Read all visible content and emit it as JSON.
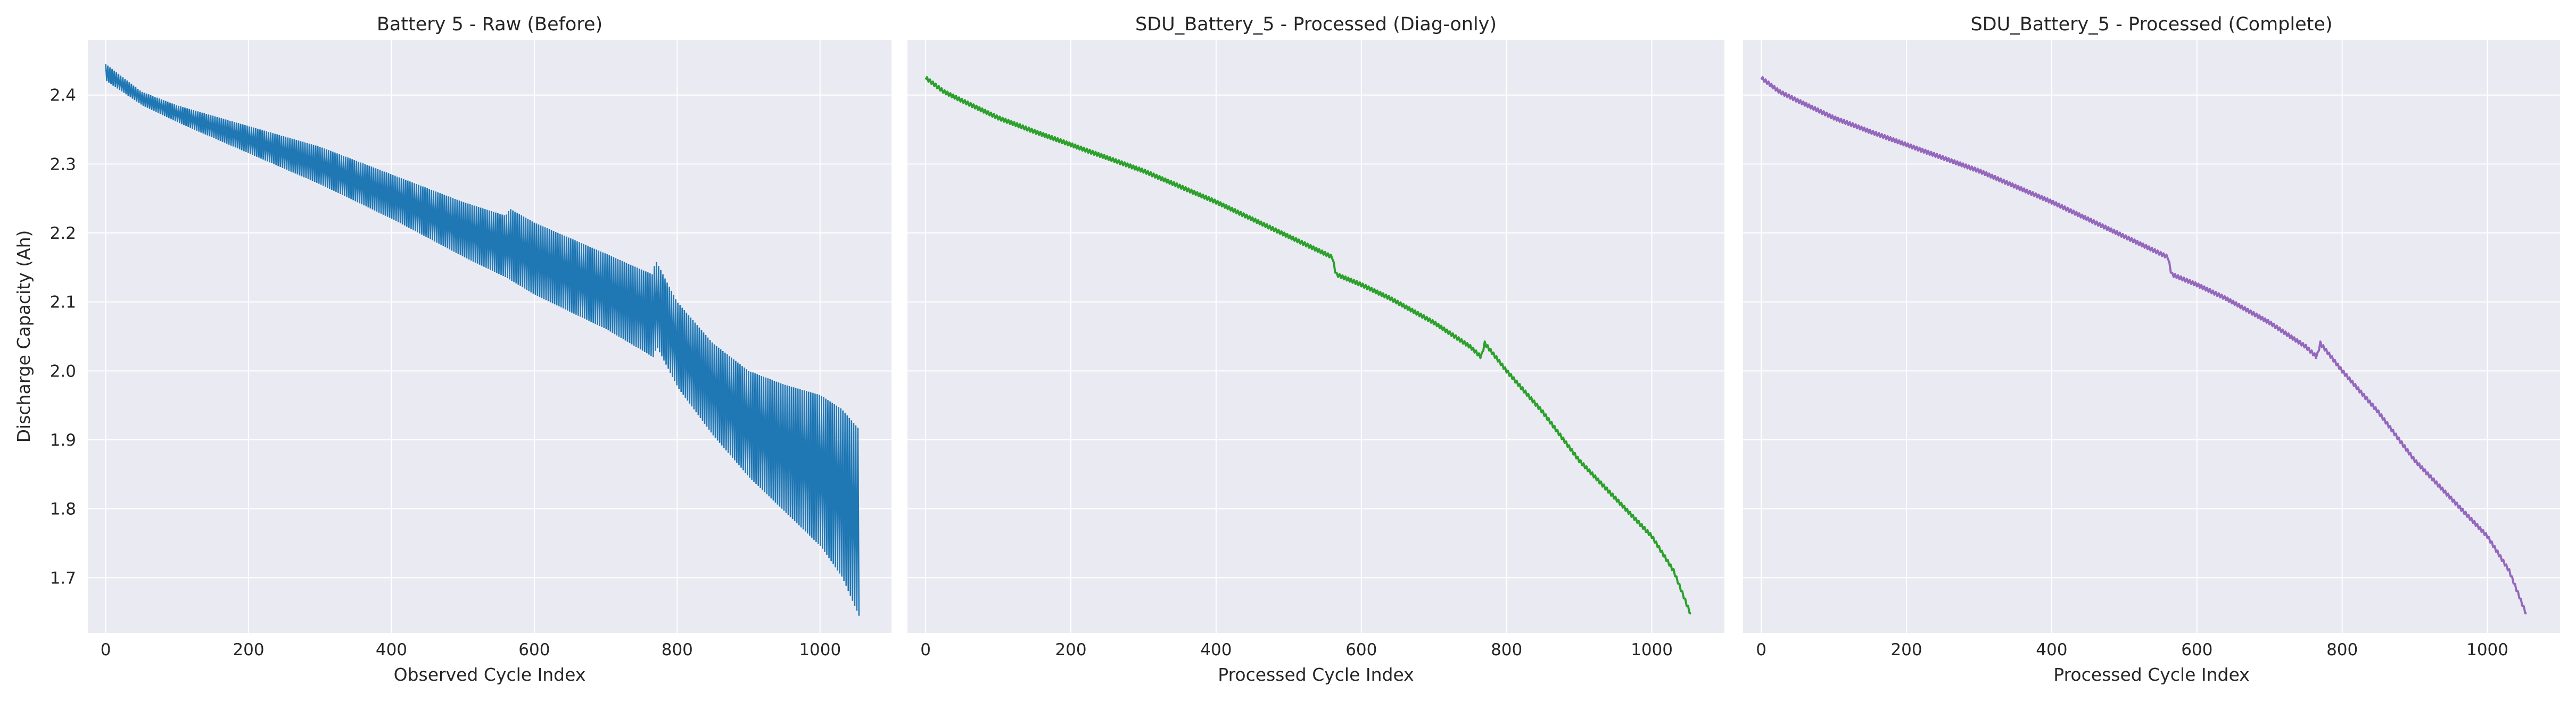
{
  "figure": {
    "background": "#ffffff",
    "plot_background": "#eaeaf2",
    "grid_color": "#ffffff",
    "text_color": "#262626"
  },
  "chart_data": [
    {
      "type": "line",
      "title": "Battery 5 - Raw (Before)",
      "xlabel": "Observed Cycle Index",
      "ylabel": "Discharge Capacity (Ah)",
      "xlim": [
        -25,
        1100
      ],
      "ylim": [
        1.62,
        2.48
      ],
      "xticks": [
        0,
        200,
        400,
        600,
        800,
        1000
      ],
      "yticks": [
        1.7,
        1.8,
        1.9,
        2.0,
        2.1,
        2.2,
        2.3,
        2.4
      ],
      "ytick_labels_visible": true,
      "grid": true,
      "color": "#1f77b4",
      "style": "oscillating",
      "x_range": [
        0,
        1055
      ],
      "upper": {
        "x": [
          0,
          50,
          100,
          200,
          300,
          400,
          500,
          560,
          566,
          600,
          700,
          765,
          770,
          800,
          850,
          900,
          950,
          1000,
          1030,
          1055
        ],
        "y": [
          2.445,
          2.405,
          2.385,
          2.355,
          2.325,
          2.285,
          2.245,
          2.225,
          2.235,
          2.215,
          2.17,
          2.14,
          2.16,
          2.1,
          2.04,
          2.0,
          1.98,
          1.965,
          1.945,
          1.915
        ]
      },
      "lower": {
        "x": [
          0,
          50,
          100,
          200,
          300,
          400,
          500,
          560,
          600,
          700,
          765,
          770,
          800,
          850,
          900,
          950,
          1000,
          1030,
          1055
        ],
        "y": [
          2.42,
          2.385,
          2.36,
          2.315,
          2.27,
          2.22,
          2.165,
          2.135,
          2.11,
          2.06,
          2.02,
          2.035,
          1.975,
          1.905,
          1.845,
          1.795,
          1.745,
          1.7,
          1.64
        ]
      }
    },
    {
      "type": "line",
      "title": "SDU_Battery_5 - Processed (Diag-only)",
      "xlabel": "Processed Cycle Index",
      "ylabel": "",
      "xlim": [
        -25,
        1100
      ],
      "ylim": [
        1.62,
        2.48
      ],
      "xticks": [
        0,
        200,
        400,
        600,
        800,
        1000
      ],
      "yticks": [
        1.7,
        1.8,
        1.9,
        2.0,
        2.1,
        2.2,
        2.3,
        2.4
      ],
      "ytick_labels_visible": false,
      "grid": true,
      "color": "#2ca02c",
      "style": "smooth",
      "x": [
        0,
        25,
        50,
        100,
        150,
        200,
        250,
        300,
        400,
        500,
        560,
        565,
        600,
        640,
        700,
        750,
        765,
        770,
        800,
        850,
        900,
        950,
        1000,
        1030,
        1055
      ],
      "y": [
        2.425,
        2.405,
        2.392,
        2.367,
        2.347,
        2.328,
        2.309,
        2.29,
        2.245,
        2.195,
        2.165,
        2.14,
        2.125,
        2.105,
        2.07,
        2.035,
        2.02,
        2.04,
        2.0,
        1.94,
        1.87,
        1.815,
        1.76,
        1.71,
        1.643
      ]
    },
    {
      "type": "line",
      "title": "SDU_Battery_5 - Processed (Complete)",
      "xlabel": "Processed Cycle Index",
      "ylabel": "",
      "xlim": [
        -25,
        1100
      ],
      "ylim": [
        1.62,
        2.48
      ],
      "xticks": [
        0,
        200,
        400,
        600,
        800,
        1000
      ],
      "yticks": [
        1.7,
        1.8,
        1.9,
        2.0,
        2.1,
        2.2,
        2.3,
        2.4
      ],
      "ytick_labels_visible": false,
      "grid": true,
      "color": "#9467bd",
      "style": "smooth",
      "x": [
        0,
        25,
        50,
        100,
        150,
        200,
        250,
        300,
        400,
        500,
        560,
        565,
        600,
        640,
        700,
        750,
        765,
        770,
        800,
        850,
        900,
        950,
        1000,
        1030,
        1055
      ],
      "y": [
        2.425,
        2.405,
        2.392,
        2.367,
        2.347,
        2.328,
        2.309,
        2.29,
        2.245,
        2.195,
        2.165,
        2.14,
        2.125,
        2.105,
        2.07,
        2.035,
        2.02,
        2.04,
        2.0,
        1.94,
        1.87,
        1.815,
        1.76,
        1.71,
        1.643
      ]
    }
  ]
}
